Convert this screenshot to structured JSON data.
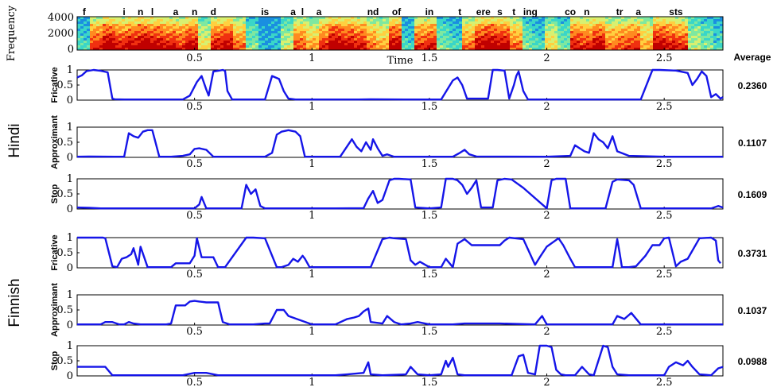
{
  "colors": {
    "series_line": "#1515e8",
    "axis": "#000000",
    "spectrogram_scale": [
      "#1a8fe0",
      "#3ad6c8",
      "#7ee8a0",
      "#d8f070",
      "#ffd040",
      "#ff8a20",
      "#f03010",
      "#c00000"
    ]
  },
  "spectrogram": {
    "ylabel": "Frequency",
    "xlabel": "Time",
    "yticks": [
      "4000",
      "2000",
      "0"
    ],
    "xticks": [
      "0.5",
      "1",
      "1.5",
      "2",
      "2.5"
    ],
    "phones": [
      {
        "t": 0.03,
        "text": "f"
      },
      {
        "t": 0.2,
        "text": "i"
      },
      {
        "t": 0.27,
        "text": "n"
      },
      {
        "t": 0.32,
        "text": "l"
      },
      {
        "t": 0.42,
        "text": "a"
      },
      {
        "t": 0.5,
        "text": "n"
      },
      {
        "t": 0.58,
        "text": "d"
      },
      {
        "t": 0.8,
        "text": "is"
      },
      {
        "t": 0.92,
        "text": "a"
      },
      {
        "t": 0.96,
        "text": "l"
      },
      {
        "t": 1.03,
        "text": "a"
      },
      {
        "t": 1.26,
        "text": "nd"
      },
      {
        "t": 1.36,
        "text": "of"
      },
      {
        "t": 1.5,
        "text": "in"
      },
      {
        "t": 1.63,
        "text": "t"
      },
      {
        "t": 1.73,
        "text": "ere"
      },
      {
        "t": 1.8,
        "text": "s"
      },
      {
        "t": 1.86,
        "text": "t"
      },
      {
        "t": 1.93,
        "text": "ing"
      },
      {
        "t": 2.1,
        "text": "co"
      },
      {
        "t": 2.17,
        "text": "n"
      },
      {
        "t": 2.31,
        "text": "tr"
      },
      {
        "t": 2.39,
        "text": "a"
      },
      {
        "t": 2.55,
        "text": "sts"
      }
    ]
  },
  "average_heading": "Average",
  "groups": [
    {
      "label": "Hindi",
      "panels": [
        0,
        1,
        2
      ]
    },
    {
      "label": "Finnish",
      "panels": [
        3,
        4,
        5
      ]
    }
  ],
  "chart_data": {
    "type": "line",
    "x_range": [
      0,
      2.75
    ],
    "xlim": [
      0,
      2.75
    ],
    "ylim": [
      0,
      1
    ],
    "xticks": [
      "0.5",
      "1",
      "1.5",
      "2",
      "2.5"
    ],
    "yticks": [
      "0",
      "0.5",
      "1"
    ],
    "panels": [
      {
        "group": "Hindi",
        "ylabel": "Fricative",
        "average": "0.2360",
        "x": [
          0,
          0.02,
          0.04,
          0.07,
          0.1,
          0.13,
          0.15,
          0.16,
          0.2,
          0.25,
          0.4,
          0.45,
          0.48,
          0.51,
          0.53,
          0.55,
          0.56,
          0.58,
          0.6,
          0.62,
          0.63,
          0.64,
          0.66,
          0.8,
          0.83,
          0.86,
          0.88,
          0.9,
          0.93,
          1.2,
          1.25,
          1.4,
          1.55,
          1.6,
          1.62,
          1.64,
          1.66,
          1.75,
          1.77,
          1.79,
          1.82,
          1.84,
          1.86,
          1.87,
          1.88,
          1.9,
          1.92,
          2.4,
          2.45,
          2.48,
          2.55,
          2.6,
          2.62,
          2.64,
          2.66,
          2.68,
          2.7,
          2.72,
          2.74,
          2.75
        ],
        "y": [
          0.75,
          0.82,
          0.96,
          1.0,
          0.97,
          0.92,
          0.05,
          0.03,
          0.02,
          0.02,
          0.02,
          0.02,
          0.15,
          0.6,
          0.8,
          0.35,
          0.15,
          0.95,
          0.97,
          1.0,
          0.97,
          0.3,
          0.02,
          0.02,
          0.8,
          0.7,
          0.3,
          0.05,
          0.02,
          0.02,
          0.03,
          0.02,
          0.02,
          0.65,
          0.75,
          0.5,
          0.05,
          0.05,
          1.0,
          1.0,
          0.98,
          0.05,
          0.5,
          0.8,
          0.95,
          0.3,
          0.02,
          0.02,
          1.0,
          1.0,
          0.98,
          0.9,
          0.5,
          0.7,
          0.95,
          0.8,
          0.1,
          0.2,
          0.05,
          0.1
        ]
      },
      {
        "group": "Hindi",
        "ylabel": "Approximant",
        "average": "0.1107",
        "x": [
          0,
          0.05,
          0.16,
          0.2,
          0.22,
          0.24,
          0.26,
          0.28,
          0.3,
          0.32,
          0.35,
          0.4,
          0.45,
          0.48,
          0.5,
          0.52,
          0.55,
          0.58,
          0.8,
          0.83,
          0.85,
          0.87,
          0.9,
          0.93,
          0.95,
          0.97,
          1.12,
          1.17,
          1.19,
          1.21,
          1.23,
          1.25,
          1.26,
          1.28,
          1.3,
          1.32,
          1.35,
          1.4,
          1.6,
          1.63,
          1.65,
          1.67,
          1.7,
          2.0,
          2.1,
          2.12,
          2.14,
          2.16,
          2.18,
          2.2,
          2.22,
          2.24,
          2.26,
          2.28,
          2.3,
          2.35,
          2.5,
          2.75
        ],
        "y": [
          0.02,
          0.03,
          0.02,
          0.02,
          0.8,
          0.7,
          0.65,
          0.85,
          0.9,
          0.9,
          0.02,
          0.02,
          0.05,
          0.1,
          0.28,
          0.3,
          0.25,
          0.02,
          0.02,
          0.15,
          0.75,
          0.85,
          0.9,
          0.85,
          0.7,
          0.02,
          0.02,
          0.6,
          0.35,
          0.2,
          0.5,
          0.25,
          0.6,
          0.3,
          0.05,
          0.1,
          0.02,
          0.02,
          0.02,
          0.15,
          0.25,
          0.1,
          0.03,
          0.02,
          0.05,
          0.4,
          0.3,
          0.2,
          0.15,
          0.8,
          0.6,
          0.5,
          0.3,
          0.7,
          0.2,
          0.05,
          0.02,
          0.02
        ]
      },
      {
        "group": "Hindi",
        "ylabel": "Stop",
        "average": "0.1609",
        "x": [
          0,
          0.05,
          0.1,
          0.5,
          0.52,
          0.53,
          0.55,
          0.7,
          0.72,
          0.74,
          0.76,
          0.78,
          0.8,
          1.1,
          1.22,
          1.24,
          1.26,
          1.28,
          1.3,
          1.33,
          1.35,
          1.37,
          1.42,
          1.44,
          1.5,
          1.55,
          1.57,
          1.6,
          1.62,
          1.64,
          1.66,
          1.68,
          1.7,
          1.72,
          1.77,
          1.79,
          1.82,
          1.85,
          1.9,
          2.0,
          2.02,
          2.04,
          2.08,
          2.1,
          2.25,
          2.28,
          2.3,
          2.35,
          2.37,
          2.4,
          2.7,
          2.73,
          2.75
        ],
        "y": [
          0.05,
          0.04,
          0.02,
          0.02,
          0.15,
          0.4,
          0.02,
          0.02,
          0.8,
          0.5,
          0.65,
          0.1,
          0.02,
          0.02,
          0.03,
          0.35,
          0.6,
          0.2,
          0.3,
          0.95,
          1.0,
          1.0,
          0.98,
          0.05,
          0.02,
          0.05,
          1.0,
          1.0,
          0.95,
          0.8,
          0.5,
          0.7,
          0.95,
          0.05,
          0.05,
          0.95,
          1.0,
          0.98,
          0.7,
          0.02,
          0.95,
          1.0,
          1.0,
          0.02,
          0.02,
          0.9,
          0.98,
          0.95,
          0.8,
          0.02,
          0.02,
          0.1,
          0.05
        ]
      },
      {
        "group": "Finnish",
        "ylabel": "Fricative",
        "average": "0.3731",
        "x": [
          0,
          0.1,
          0.11,
          0.12,
          0.15,
          0.17,
          0.19,
          0.21,
          0.23,
          0.24,
          0.26,
          0.27,
          0.3,
          0.35,
          0.4,
          0.42,
          0.48,
          0.5,
          0.51,
          0.53,
          0.58,
          0.6,
          0.62,
          0.63,
          0.72,
          0.75,
          0.8,
          0.85,
          0.87,
          0.9,
          0.92,
          0.94,
          0.96,
          0.97,
          0.99,
          1.15,
          1.2,
          1.25,
          1.3,
          1.33,
          1.35,
          1.4,
          1.42,
          1.44,
          1.46,
          1.5,
          1.55,
          1.57,
          1.6,
          1.62,
          1.65,
          1.68,
          1.72,
          1.8,
          1.82,
          1.84,
          1.9,
          1.95,
          1.97,
          2.0,
          2.05,
          2.07,
          2.1,
          2.12,
          2.15,
          2.18,
          2.2,
          2.25,
          2.28,
          2.3,
          2.31,
          2.32,
          2.35,
          2.38,
          2.42,
          2.45,
          2.48,
          2.5,
          2.52,
          2.55,
          2.57,
          2.6,
          2.65,
          2.7,
          2.72,
          2.73,
          2.74
        ],
        "y": [
          1.0,
          1.0,
          1.0,
          0.98,
          0.05,
          0.02,
          0.3,
          0.35,
          0.45,
          0.65,
          0.1,
          0.7,
          0.02,
          0.02,
          0.02,
          0.15,
          0.15,
          0.4,
          0.98,
          0.35,
          0.35,
          0.02,
          0.02,
          0.02,
          1.0,
          1.0,
          0.98,
          0.02,
          0.02,
          0.1,
          0.3,
          0.2,
          0.4,
          0.3,
          0.02,
          0.02,
          0.02,
          0.02,
          0.95,
          1.0,
          0.98,
          0.95,
          0.25,
          0.1,
          0.2,
          0.02,
          0.02,
          0.3,
          0.02,
          0.8,
          0.95,
          0.75,
          0.75,
          0.75,
          0.9,
          1.0,
          0.95,
          0.1,
          0.35,
          0.7,
          0.98,
          0.75,
          0.3,
          0.02,
          0.02,
          0.02,
          0.02,
          0.02,
          0.02,
          0.95,
          0.5,
          0.02,
          0.02,
          0.05,
          0.4,
          0.75,
          0.75,
          0.98,
          1.0,
          0.05,
          0.2,
          0.3,
          0.98,
          1.0,
          0.9,
          0.25,
          0.15
        ]
      },
      {
        "group": "Finnish",
        "ylabel": "Approximant",
        "average": "0.1037",
        "x": [
          0,
          0.1,
          0.12,
          0.15,
          0.18,
          0.2,
          0.22,
          0.24,
          0.27,
          0.3,
          0.35,
          0.38,
          0.4,
          0.42,
          0.43,
          0.46,
          0.48,
          0.5,
          0.52,
          0.55,
          0.6,
          0.62,
          0.65,
          0.7,
          0.75,
          0.8,
          0.82,
          0.85,
          0.88,
          0.9,
          1.0,
          1.1,
          1.15,
          1.18,
          1.2,
          1.22,
          1.24,
          1.25,
          1.3,
          1.32,
          1.35,
          1.38,
          1.42,
          1.45,
          1.5,
          1.6,
          1.65,
          1.8,
          1.95,
          1.98,
          2.0,
          2.15,
          2.2,
          2.28,
          2.3,
          2.33,
          2.36,
          2.4,
          2.75
        ],
        "y": [
          0.02,
          0.02,
          0.1,
          0.1,
          0.02,
          0.02,
          0.1,
          0.05,
          0.02,
          0.02,
          0.02,
          0.02,
          0.05,
          0.65,
          0.65,
          0.65,
          0.78,
          0.8,
          0.78,
          0.75,
          0.75,
          0.1,
          0.02,
          0.02,
          0.02,
          0.05,
          0.05,
          0.5,
          0.5,
          0.3,
          0.02,
          0.02,
          0.2,
          0.25,
          0.3,
          0.45,
          0.55,
          0.1,
          0.05,
          0.3,
          0.1,
          0.02,
          0.05,
          0.1,
          0.02,
          0.02,
          0.05,
          0.05,
          0.02,
          0.3,
          0.02,
          0.02,
          0.02,
          0.02,
          0.3,
          0.2,
          0.4,
          0.02,
          0.02
        ]
      },
      {
        "group": "Finnish",
        "ylabel": "Stop",
        "average": "0.0988",
        "x": [
          0,
          0.1,
          0.12,
          0.15,
          0.2,
          0.25,
          0.4,
          0.45,
          0.5,
          0.55,
          0.6,
          0.65,
          1.1,
          1.15,
          1.22,
          1.24,
          1.25,
          1.3,
          1.4,
          1.42,
          1.45,
          1.5,
          1.55,
          1.57,
          1.58,
          1.6,
          1.62,
          1.65,
          1.85,
          1.88,
          1.9,
          1.92,
          1.95,
          1.97,
          2.0,
          2.02,
          2.04,
          2.06,
          2.08,
          2.12,
          2.15,
          2.18,
          2.2,
          2.24,
          2.26,
          2.28,
          2.3,
          2.35,
          2.5,
          2.52,
          2.55,
          2.58,
          2.6,
          2.62,
          2.65,
          2.7,
          2.73,
          2.75
        ],
        "y": [
          0.3,
          0.3,
          0.3,
          0.02,
          0.02,
          0.02,
          0.02,
          0.02,
          0.1,
          0.1,
          0.02,
          0.02,
          0.02,
          0.05,
          0.1,
          0.45,
          0.05,
          0.02,
          0.05,
          0.3,
          0.05,
          0.02,
          0.05,
          0.5,
          0.3,
          0.6,
          0.05,
          0.02,
          0.02,
          0.65,
          0.7,
          0.1,
          0.05,
          1.0,
          1.0,
          0.95,
          0.2,
          0.05,
          0.02,
          0.02,
          0.3,
          0.05,
          0.02,
          1.0,
          0.95,
          0.3,
          0.05,
          0.02,
          0.02,
          0.3,
          0.45,
          0.35,
          0.5,
          0.3,
          0.05,
          0.02,
          0.25,
          0.3
        ]
      }
    ]
  }
}
